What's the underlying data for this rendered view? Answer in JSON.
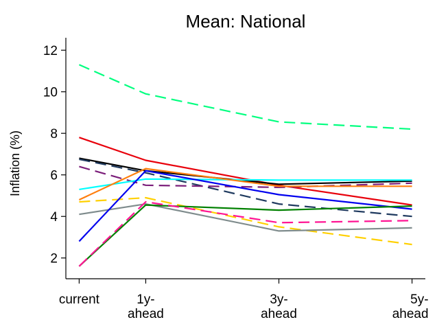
{
  "chart_data": {
    "type": "line",
    "title": "Mean: National",
    "ylabel": "Inflation (%)",
    "xlabel": "",
    "x": [
      0,
      1,
      3,
      5
    ],
    "x_tick_labels": [
      [
        "current"
      ],
      [
        "1y-",
        "ahead"
      ],
      [
        "3y-",
        "ahead"
      ],
      [
        "5y-",
        "ahead"
      ]
    ],
    "xlim": [
      -0.2,
      5.2
    ],
    "ylim": [
      1.0,
      12.6
    ],
    "yticks": [
      2,
      4,
      6,
      8,
      10,
      12
    ],
    "grid": false,
    "legend": "none",
    "series": [
      {
        "color": "#00ff7f",
        "dash": "dashed",
        "values": [
          11.3,
          9.9,
          8.55,
          8.2
        ]
      },
      {
        "color": "#e8000b",
        "dash": "solid",
        "values": [
          7.8,
          6.7,
          5.5,
          4.55
        ]
      },
      {
        "color": "#000000",
        "dash": "solid",
        "values": [
          6.8,
          6.2,
          5.55,
          5.7
        ]
      },
      {
        "color": "#1f3a5f",
        "dash": "dashed",
        "values": [
          6.75,
          6.1,
          4.6,
          4.0
        ]
      },
      {
        "color": "#7b1e7a",
        "dash": "dashed",
        "values": [
          6.4,
          5.5,
          5.4,
          5.6
        ]
      },
      {
        "color": "#00ffff",
        "dash": "solid",
        "values": [
          5.3,
          5.8,
          5.75,
          5.75
        ]
      },
      {
        "color": "#ff7f0e",
        "dash": "solid",
        "values": [
          4.8,
          6.3,
          5.45,
          5.45
        ]
      },
      {
        "color": "#ffd000",
        "dash": "dashed",
        "values": [
          4.7,
          4.9,
          3.5,
          2.65
        ]
      },
      {
        "color": "#7f8c8d",
        "dash": "solid",
        "values": [
          4.1,
          4.6,
          3.3,
          3.45
        ]
      },
      {
        "color": "#0000ee",
        "dash": "solid",
        "values": [
          2.8,
          6.2,
          5.05,
          4.35
        ]
      },
      {
        "color": "#008000",
        "dash": "solid",
        "values": [
          1.6,
          4.55,
          4.3,
          4.5
        ]
      },
      {
        "color": "#ff1493",
        "dash": "dashed",
        "values": [
          1.6,
          4.7,
          3.7,
          3.8
        ]
      }
    ]
  }
}
